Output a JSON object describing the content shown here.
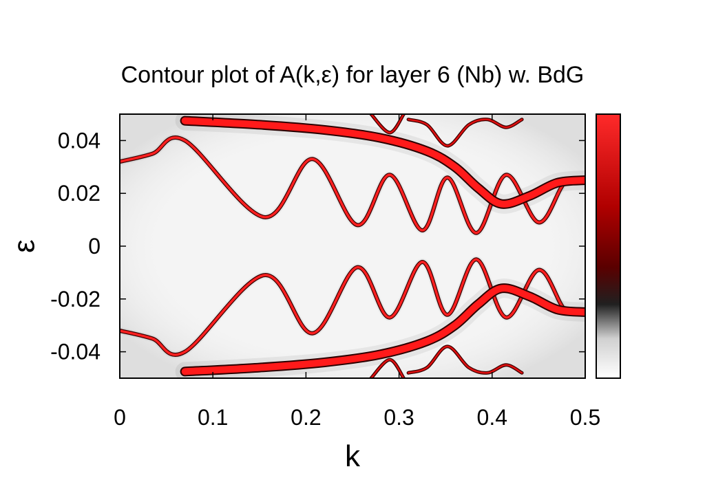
{
  "chart_data": {
    "type": "heatmap",
    "title": "Contour plot of A(k,ε)  for layer 6 (Nb) w. BdG",
    "xlabel": "k",
    "ylabel": "ε",
    "xlim": [
      0,
      0.5
    ],
    "ylim": [
      -0.05,
      0.05
    ],
    "x_ticks": [
      0,
      0.1,
      0.2,
      0.3,
      0.4,
      0.5
    ],
    "x_tick_labels": [
      "0",
      "0.1",
      "0.2",
      "0.3",
      "0.4",
      "0.5"
    ],
    "y_ticks": [
      0.04,
      0.02,
      0,
      -0.02,
      -0.04
    ],
    "y_tick_labels": [
      "0.04",
      "0.02",
      "0",
      "-0.02",
      "-0.04"
    ],
    "colorbar": {
      "range": [
        0,
        0.5
      ],
      "colors": [
        "#ffffff",
        "#202020",
        "#8a0000",
        "#ff2a2a"
      ]
    },
    "grid": false,
    "bands": [
      {
        "id": "oscillating-upper",
        "points": [
          [
            0,
            0.032
          ],
          [
            0.035,
            0.035
          ],
          [
            0.07,
            0.04
          ],
          [
            0.155,
            0.011
          ],
          [
            0.207,
            0.033
          ],
          [
            0.255,
            0.008
          ],
          [
            0.29,
            0.027
          ],
          [
            0.325,
            0.006
          ],
          [
            0.352,
            0.026
          ],
          [
            0.383,
            0.005
          ],
          [
            0.415,
            0.027
          ],
          [
            0.45,
            0.009
          ],
          [
            0.478,
            0.024
          ],
          [
            0.5,
            0.025
          ]
        ]
      },
      {
        "id": "oscillating-lower",
        "points": [
          [
            0,
            -0.032
          ],
          [
            0.035,
            -0.035
          ],
          [
            0.07,
            -0.04
          ],
          [
            0.155,
            -0.011
          ],
          [
            0.207,
            -0.033
          ],
          [
            0.255,
            -0.008
          ],
          [
            0.29,
            -0.027
          ],
          [
            0.325,
            -0.006
          ],
          [
            0.352,
            -0.026
          ],
          [
            0.383,
            -0.005
          ],
          [
            0.415,
            -0.027
          ],
          [
            0.45,
            -0.009
          ],
          [
            0.478,
            -0.024
          ],
          [
            0.5,
            -0.025
          ]
        ]
      },
      {
        "id": "broad-upper",
        "points": [
          [
            0.07,
            0.0475
          ],
          [
            0.15,
            0.046
          ],
          [
            0.22,
            0.044
          ],
          [
            0.28,
            0.041
          ],
          [
            0.33,
            0.036
          ],
          [
            0.36,
            0.03
          ],
          [
            0.385,
            0.022
          ],
          [
            0.41,
            0.016
          ],
          [
            0.44,
            0.019
          ],
          [
            0.47,
            0.024
          ],
          [
            0.5,
            0.025
          ]
        ]
      },
      {
        "id": "broad-lower",
        "points": [
          [
            0.07,
            -0.0475
          ],
          [
            0.15,
            -0.046
          ],
          [
            0.22,
            -0.044
          ],
          [
            0.28,
            -0.041
          ],
          [
            0.33,
            -0.036
          ],
          [
            0.36,
            -0.03
          ],
          [
            0.385,
            -0.022
          ],
          [
            0.41,
            -0.016
          ],
          [
            0.44,
            -0.019
          ],
          [
            0.47,
            -0.024
          ],
          [
            0.5,
            -0.025
          ]
        ]
      },
      {
        "id": "small-upper",
        "points": [
          [
            0.31,
            0.048
          ],
          [
            0.33,
            0.046
          ],
          [
            0.352,
            0.038
          ],
          [
            0.375,
            0.046
          ],
          [
            0.395,
            0.048
          ],
          [
            0.415,
            0.045
          ],
          [
            0.432,
            0.048
          ]
        ]
      },
      {
        "id": "small-lower",
        "points": [
          [
            0.31,
            -0.048
          ],
          [
            0.33,
            -0.046
          ],
          [
            0.352,
            -0.038
          ],
          [
            0.375,
            -0.046
          ],
          [
            0.395,
            -0.048
          ],
          [
            0.415,
            -0.045
          ],
          [
            0.432,
            -0.048
          ]
        ]
      },
      {
        "id": "crossing-upper",
        "points": [
          [
            0.27,
            0.05
          ],
          [
            0.29,
            0.043
          ],
          [
            0.305,
            0.05
          ]
        ]
      },
      {
        "id": "crossing-lower",
        "points": [
          [
            0.27,
            -0.05
          ],
          [
            0.29,
            -0.043
          ],
          [
            0.305,
            -0.05
          ]
        ]
      }
    ]
  }
}
